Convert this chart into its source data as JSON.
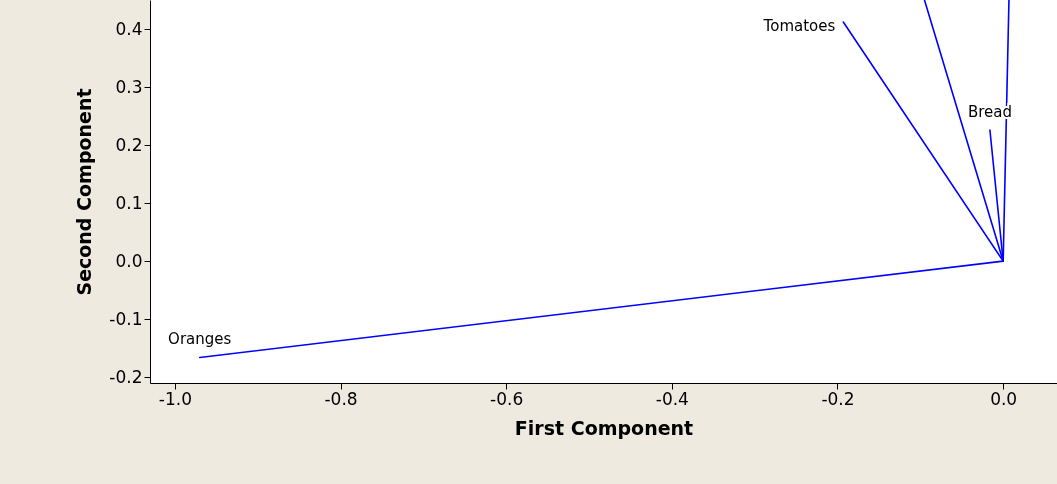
{
  "chart_data": {
    "type": "line",
    "xlabel": "First Component",
    "ylabel": "Second Component",
    "xlim": [
      -1.03,
      0.065
    ],
    "ylim": [
      -0.21,
      0.45
    ],
    "xticks": [
      {
        "value": -1,
        "label": "-1.0"
      },
      {
        "value": -0.8,
        "label": "-0.8"
      },
      {
        "value": -0.6,
        "label": "-0.6"
      },
      {
        "value": -0.4,
        "label": "-0.4"
      },
      {
        "value": -0.2,
        "label": "-0.2"
      },
      {
        "value": 0,
        "label": "0.0"
      }
    ],
    "yticks": [
      {
        "value": -0.2,
        "label": "-0.2"
      },
      {
        "value": -0.1,
        "label": "-0.1"
      },
      {
        "value": 0,
        "label": "0.0"
      },
      {
        "value": 0.1,
        "label": "0.1"
      },
      {
        "value": 0.2,
        "label": "0.2"
      },
      {
        "value": 0.3,
        "label": "0.3"
      },
      {
        "value": 0.4,
        "label": "0.4"
      }
    ],
    "grid": false,
    "series": [
      {
        "name": "Oranges",
        "color": "#0000ff",
        "x": [
          0,
          -0.97
        ],
        "values": [
          0,
          -0.166
        ]
      },
      {
        "name": "Tomatoes",
        "color": "#0000ff",
        "x": [
          0,
          -0.193
        ],
        "values": [
          0,
          0.412
        ]
      },
      {
        "name": "Bread",
        "color": "#0000ff",
        "x": [
          0,
          -0.016
        ],
        "values": [
          0,
          0.226
        ]
      },
      {
        "color": "#0000ff",
        "x": [
          0,
          -0.095
        ],
        "values": [
          0,
          0.45
        ]
      },
      {
        "color": "#0000ff",
        "x": [
          0,
          0.007
        ],
        "values": [
          0,
          0.45
        ]
      }
    ]
  }
}
